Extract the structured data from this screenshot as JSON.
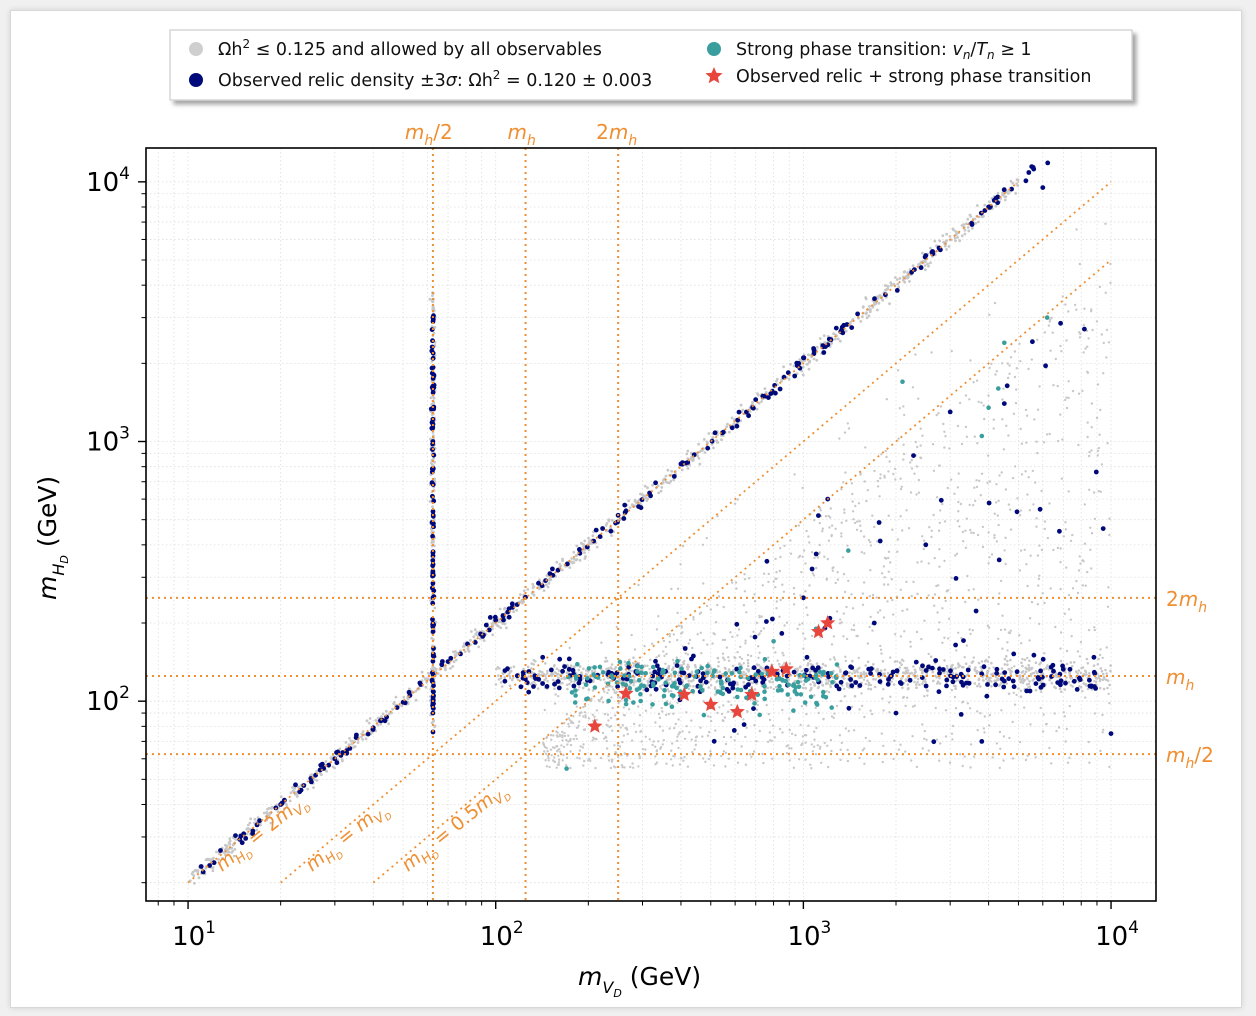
{
  "chart_data": {
    "type": "scatter",
    "xscale": "log",
    "yscale": "log",
    "xlim": [
      7.3,
      14000
    ],
    "ylim": [
      17,
      13500
    ],
    "xlabel": "m_{V_D} (GeV)",
    "ylabel": "m_{H_D} (GeV)",
    "xticks": [
      10,
      100,
      1000,
      10000
    ],
    "yticks": [
      100,
      1000,
      10000
    ],
    "tick_base": "10",
    "tick_exponents": [
      "1",
      "2",
      "3",
      "4"
    ],
    "ytick_exponents": [
      "2",
      "3",
      "4"
    ],
    "grid": true,
    "reference_lines": {
      "vertical": [
        {
          "x": 62.5,
          "label": "m_h/2"
        },
        {
          "x": 125,
          "label": "m_h"
        },
        {
          "x": 250,
          "label": "2m_h"
        }
      ],
      "horizontal": [
        {
          "y": 250,
          "label": "2m_h"
        },
        {
          "y": 125,
          "label": "m_h"
        },
        {
          "y": 62.5,
          "label": "m_h/2"
        }
      ],
      "diagonal": [
        {
          "relation": "m_{H_D} = 2m_{V_D}",
          "factor": 2,
          "x_range": [
            10,
            5000
          ]
        },
        {
          "relation": "m_{H_D} = m_{V_D}",
          "factor": 1,
          "x_range": [
            20,
            10000
          ]
        },
        {
          "relation": "m_{H_D} = 0.5m_{V_D}",
          "factor": 0.5,
          "x_range": [
            40,
            10000
          ]
        }
      ]
    },
    "series": [
      {
        "name": "Ωh² ≤ 0.125 and allowed by all observables",
        "color": "#c8c8c8",
        "marker": "dot",
        "regions": [
          "diagonal band m_HD ≈ 2 m_VD",
          "vertical band m_VD ≈ 62.5",
          "horizontal band m_HD ≈ 125",
          "wedge m_HD < m_VD"
        ]
      },
      {
        "name": "Observed relic density ±3σ: Ωh² = 0.120 ± 0.003",
        "color": "#00097a",
        "marker": "dot",
        "sample_points": [
          [
            11.2,
            22
          ],
          [
            15,
            28.5
          ],
          [
            20,
            40
          ],
          [
            30,
            60
          ],
          [
            40,
            79
          ],
          [
            50,
            99
          ],
          [
            62.5,
            90
          ],
          [
            62.5,
            250
          ],
          [
            62.5,
            1000
          ],
          [
            62.5,
            3000
          ],
          [
            100,
            205
          ],
          [
            150,
            310
          ],
          [
            250,
            520
          ],
          [
            400,
            820
          ],
          [
            700,
            1450
          ],
          [
            1000,
            2100
          ],
          [
            1500,
            3100
          ],
          [
            2500,
            5200
          ],
          [
            4000,
            8000
          ],
          [
            6000,
            9500
          ],
          [
            1000,
            250
          ],
          [
            2500,
            400
          ],
          [
            3000,
            1300
          ],
          [
            4500,
            1400
          ],
          [
            1200,
            600
          ],
          [
            1700,
            200
          ],
          [
            2000,
            90
          ],
          [
            3800,
            70
          ],
          [
            10000,
            75
          ]
        ]
      },
      {
        "name": "Strong phase transition: v_n/T_n ≥ 1",
        "color": "#3a9e9e",
        "marker": "dot",
        "sample_points": [
          [
            170,
            55
          ],
          [
            400,
            105
          ],
          [
            500,
            95
          ],
          [
            750,
            145
          ],
          [
            800,
            170
          ],
          [
            1100,
            190
          ],
          [
            1400,
            380
          ],
          [
            2100,
            1700
          ],
          [
            3800,
            1050
          ],
          [
            4000,
            1350
          ],
          [
            4300,
            1600
          ],
          [
            4500,
            2400
          ],
          [
            6200,
            3000
          ]
        ]
      },
      {
        "name": "Observed relic + strong phase transition",
        "color": "#e8463c",
        "marker": "star",
        "points": [
          [
            210,
            80
          ],
          [
            265,
            107
          ],
          [
            410,
            106
          ],
          [
            500,
            97
          ],
          [
            610,
            91
          ],
          [
            680,
            106
          ],
          [
            790,
            130
          ],
          [
            880,
            133
          ],
          [
            1120,
            185
          ],
          [
            1200,
            200
          ]
        ]
      }
    ]
  },
  "axis_unit": "(GeV)",
  "legend": {
    "entries": [
      {
        "label": "Ωh² ≤ 0.125 and allowed by all observables",
        "color": "#c8c8c8",
        "marker": "dot"
      },
      {
        "label": "Observed relic density ±3σ: Ωh² = 0.120 ± 0.003",
        "color": "#00097a",
        "marker": "dot"
      },
      {
        "label": "Strong phase transition: v_n/T_n ≥ 1",
        "color": "#3a9e9e",
        "marker": "dot"
      },
      {
        "label": "Observed relic + strong phase transition",
        "color": "#e8463c",
        "marker": "star"
      }
    ]
  },
  "annotation_color": "#ef8f32"
}
